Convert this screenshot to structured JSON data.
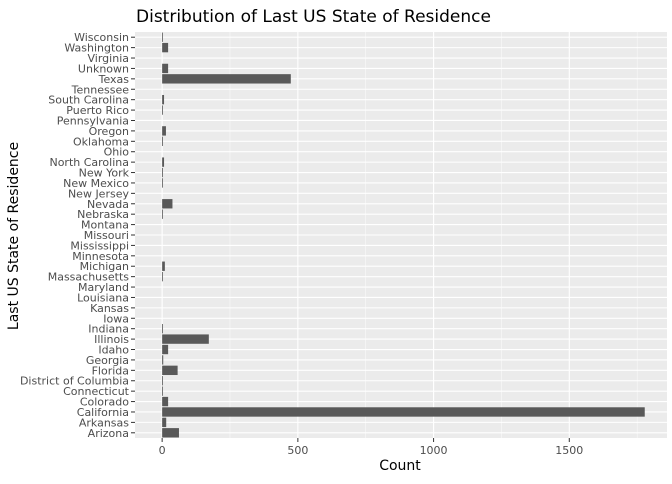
{
  "chart_data": {
    "type": "bar",
    "orientation": "horizontal",
    "title": "Distribution of Last US State of Residence",
    "xlabel": "Count",
    "ylabel": "Last US State of Residence",
    "xlim": [
      -100,
      1860
    ],
    "x_ticks": [
      0,
      500,
      1000,
      1500
    ],
    "x_tick_labels": [
      "0",
      "500",
      "1000",
      "1500"
    ],
    "grid": true,
    "legend": "none",
    "colors": {
      "bar": "#595959",
      "panel": "#ebebeb",
      "grid": "#ffffff"
    },
    "categories": [
      "Arizona",
      "Arkansas",
      "California",
      "Colorado",
      "Connecticut",
      "District of Columbia",
      "Florida",
      "Georgia",
      "Idaho",
      "Illinois",
      "Indiana",
      "Iowa",
      "Kansas",
      "Louisiana",
      "Maryland",
      "Massachusetts",
      "Michigan",
      "Minnesota",
      "Mississippi",
      "Missouri",
      "Montana",
      "Nebraska",
      "Nevada",
      "New Jersey",
      "New Mexico",
      "New York",
      "North Carolina",
      "Ohio",
      "Oklahoma",
      "Oregon",
      "Pennsylvania",
      "Puerto Rico",
      "South Carolina",
      "Tennessee",
      "Texas",
      "Unknown",
      "Virginia",
      "Washington",
      "Wisconsin"
    ],
    "values": [
      62,
      15,
      1778,
      22,
      1,
      3,
      57,
      4,
      22,
      172,
      3,
      0,
      0,
      0,
      0,
      1,
      10,
      0,
      0,
      0,
      0,
      1,
      38,
      0,
      2,
      3,
      7,
      0,
      3,
      14,
      0,
      3,
      7,
      0,
      474,
      22,
      0,
      22,
      1
    ]
  }
}
